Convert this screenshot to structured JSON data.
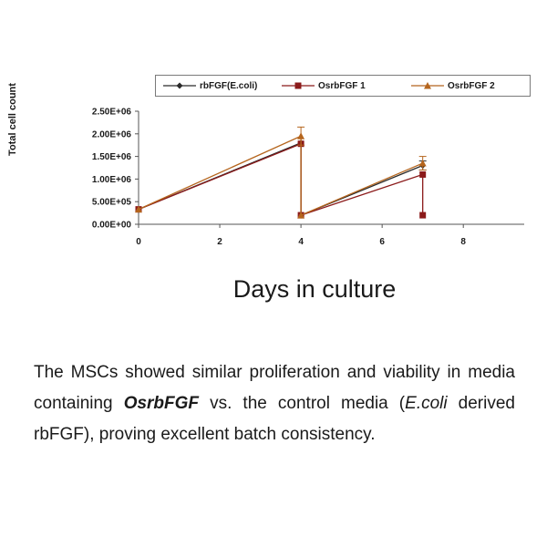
{
  "chart_data": {
    "type": "line",
    "title": "",
    "xlabel": "Days in culture",
    "ylabel": "Total cell count",
    "xlim": [
      0,
      9.5
    ],
    "ylim": [
      0,
      2500000
    ],
    "x_ticks": [
      "0",
      "2",
      "4",
      "6",
      "8"
    ],
    "y_ticks": [
      "0.00E+00",
      "5.00E+05",
      "1.00E+06",
      "1.50E+06",
      "2.00E+06",
      "2.50E+06"
    ],
    "legend_position": "top",
    "grid": false,
    "series": [
      {
        "name": "rbFGF(E.coli)",
        "color": "#2b2b2b",
        "marker": "diamond",
        "x": [
          0,
          4,
          4,
          7
        ],
        "y": [
          330000,
          1800000,
          200000,
          1300000
        ],
        "error": [
          0,
          0,
          0,
          100000
        ]
      },
      {
        "name": "OsrbFGF 1",
        "color": "#8b1a1a",
        "marker": "square",
        "x": [
          0,
          4,
          4,
          7,
          7
        ],
        "y": [
          330000,
          1780000,
          200000,
          1100000,
          200000
        ],
        "error": [
          0,
          0,
          0,
          0,
          0
        ]
      },
      {
        "name": "OsrbFGF 2",
        "color": "#b5651d",
        "marker": "triangle",
        "x": [
          0,
          4,
          4,
          7
        ],
        "y": [
          330000,
          1950000,
          200000,
          1350000
        ],
        "error": [
          0,
          200000,
          0,
          150000
        ]
      }
    ]
  },
  "caption": {
    "part1": "The MSCs showed similar proliferation and viability in media containing ",
    "bold_term": "OsrbFGF",
    "part2": " vs. the control media (",
    "italic_term": "E.coli",
    "part3": " derived rbFGF), proving excellent batch consistency."
  }
}
